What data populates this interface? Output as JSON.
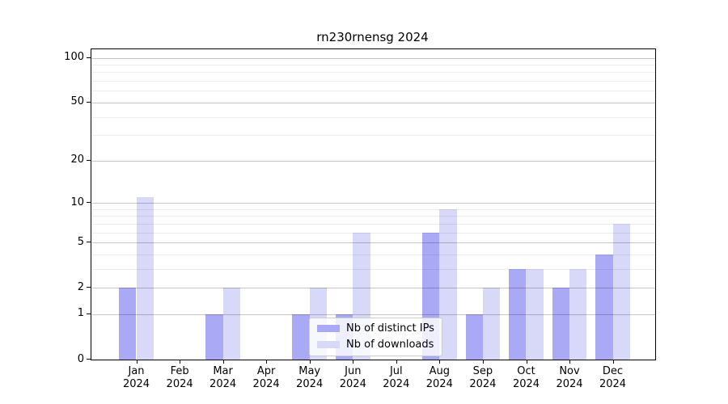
{
  "figure": {
    "title": "rn230rnensg 2024"
  },
  "chart_data": {
    "type": "bar",
    "title": "rn230rnensg 2024",
    "categories": [
      "Jan",
      "Feb",
      "Mar",
      "Apr",
      "May",
      "Jun",
      "Jul",
      "Aug",
      "Sep",
      "Oct",
      "Nov",
      "Dec"
    ],
    "category_year": "2024",
    "series": [
      {
        "name": "Nb of distinct IPs",
        "color": "#a9a9f6",
        "values": [
          2,
          0,
          1,
          0,
          1,
          1,
          0,
          6,
          1,
          3,
          2,
          4
        ]
      },
      {
        "name": "Nb of downloads",
        "color": "#d8d8f8",
        "values": [
          11,
          0,
          2,
          0,
          2,
          6,
          0,
          9,
          2,
          3,
          3,
          7
        ]
      }
    ],
    "yscale": "log1p",
    "ylim": [
      0,
      113
    ],
    "y_major_ticks": [
      0,
      1,
      2,
      5,
      10,
      20,
      50,
      100
    ],
    "y_minor_gridlines": [
      3,
      4,
      6,
      7,
      8,
      9,
      30,
      40,
      60,
      70,
      80,
      90
    ],
    "grid": true,
    "legend": {
      "position": "lower center",
      "entries": [
        "Nb of distinct IPs",
        "Nb of downloads"
      ]
    }
  }
}
